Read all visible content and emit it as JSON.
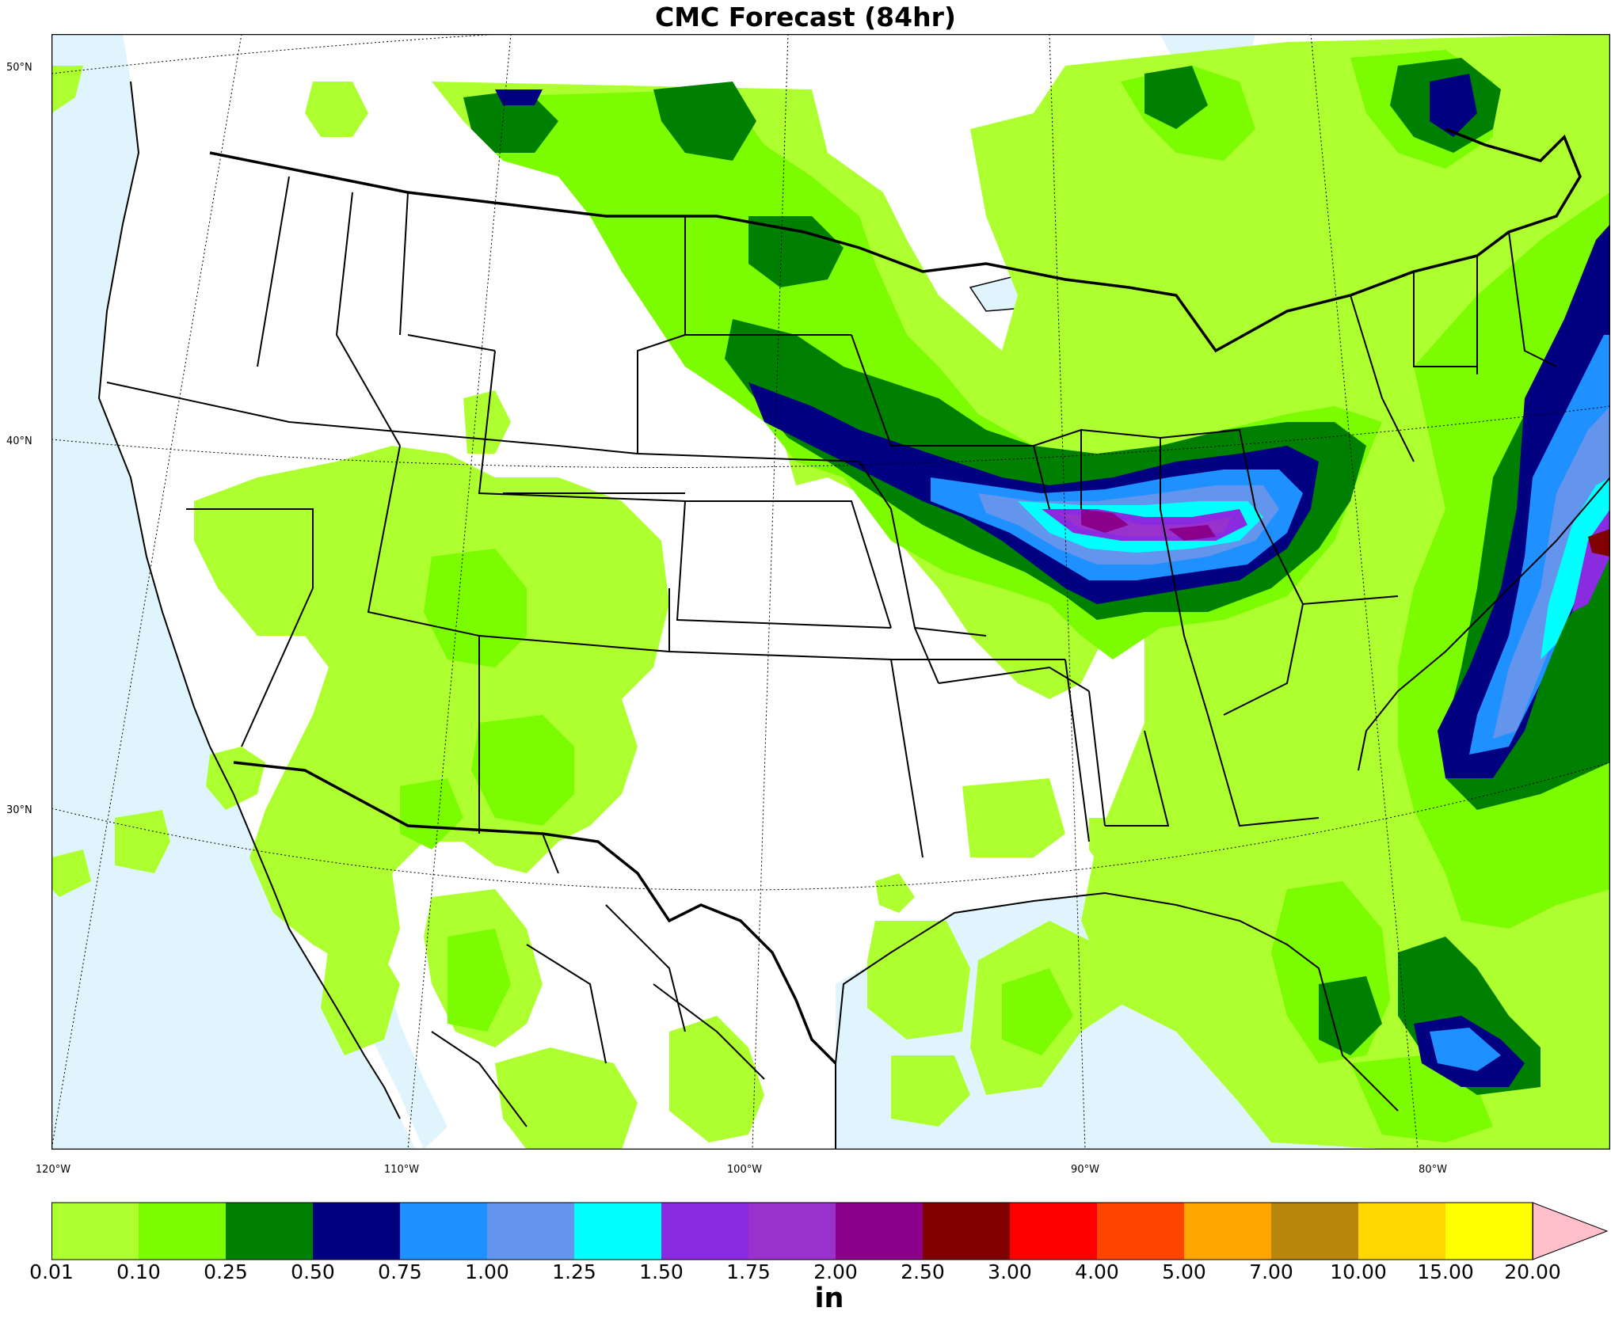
{
  "title": "CMC Forecast (84hr)",
  "units": "in",
  "lat_labels": [
    "50°N",
    "40°N",
    "30°N"
  ],
  "lon_labels": [
    "120°W",
    "110°W",
    "100°W",
    "90°W",
    "80°W"
  ],
  "colorbar": {
    "ticks": [
      "0.01",
      "0.10",
      "0.25",
      "0.50",
      "0.75",
      "1.00",
      "1.25",
      "1.50",
      "1.75",
      "2.00",
      "2.50",
      "3.00",
      "4.00",
      "5.00",
      "7.00",
      "10.00",
      "15.00",
      "20.00"
    ],
    "colors": [
      "#adff2f",
      "#7cfc00",
      "#008000",
      "#000080",
      "#1e90ff",
      "#6495ed",
      "#00ffff",
      "#8a2be2",
      "#9932cc",
      "#8b008b",
      "#800000",
      "#ff0000",
      "#ff4500",
      "#ffa500",
      "#b8860b",
      "#ffd700",
      "#ffff00"
    ],
    "extend_color": "#ffc0cb"
  },
  "colors": {
    "ocean": "#dff4fd",
    "land": "#ffffff"
  }
}
